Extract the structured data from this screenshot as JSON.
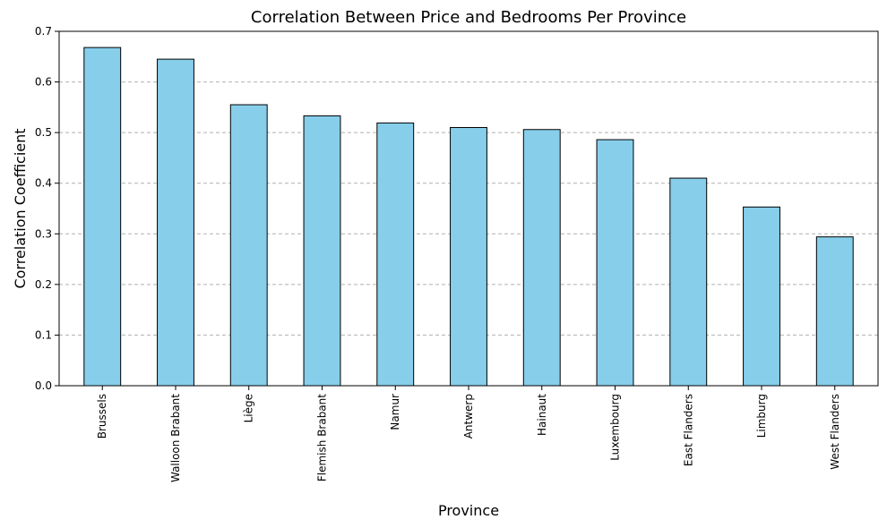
{
  "chart_data": {
    "type": "bar",
    "title": "Correlation Between Price and Bedrooms Per Province",
    "xlabel": "Province",
    "ylabel": "Correlation Coefficient",
    "categories": [
      "Brussels",
      "Walloon Brabant",
      "Liège",
      "Flemish Brabant",
      "Namur",
      "Antwerp",
      "Hainaut",
      "Luxembourg",
      "East Flanders",
      "Limburg",
      "West Flanders"
    ],
    "values": [
      0.668,
      0.645,
      0.555,
      0.533,
      0.519,
      0.51,
      0.506,
      0.486,
      0.41,
      0.353,
      0.294
    ],
    "ylim": [
      0,
      0.7
    ],
    "yticks": [
      0.0,
      0.1,
      0.2,
      0.3,
      0.4,
      0.5,
      0.6,
      0.7
    ],
    "ytick_labels": [
      "0.0",
      "0.1",
      "0.2",
      "0.3",
      "0.4",
      "0.5",
      "0.6",
      "0.7"
    ],
    "grid": "y-dashed",
    "bar_color": "#87ceeb",
    "bar_edge_color": "#000000",
    "legend": "none"
  }
}
